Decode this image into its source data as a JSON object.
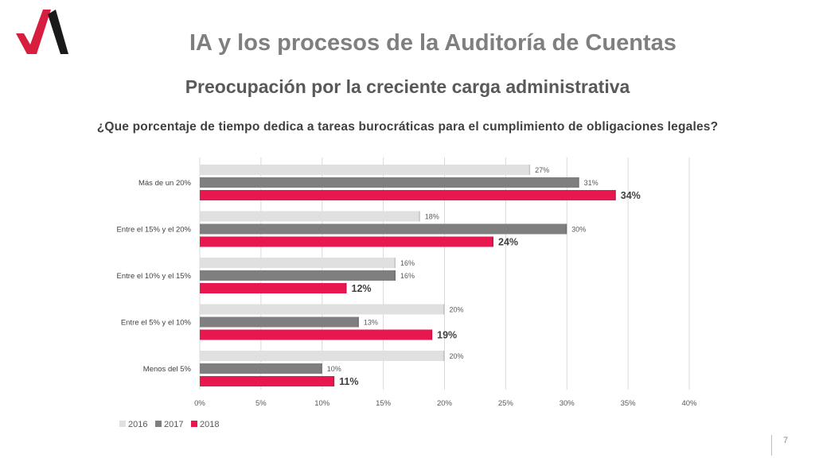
{
  "header": {
    "title": "IA y los procesos de la Auditoría de Cuentas",
    "subtitle": "Preocupación por la creciente carga administrativa",
    "question": "¿Que porcentaje de tiempo dedica a tareas burocráticas para el cumplimiento de obligaciones legales?"
  },
  "footer": {
    "page_number": "7"
  },
  "colors": {
    "s2016": "#e0e0e0",
    "s2017": "#7f7f7f",
    "s2018": "#e8174f",
    "logo_red": "#d81e3f",
    "logo_black": "#1a1a1a"
  },
  "chart_data": {
    "type": "bar",
    "orientation": "horizontal",
    "categories": [
      "Más de un  20%",
      "Entre el 15% y el 20%",
      "Entre el 10% y el 15%",
      "Entre el 5% y el 10%",
      "Menos del 5%"
    ],
    "series": [
      {
        "name": "2016",
        "values": [
          27,
          18,
          16,
          20,
          20
        ],
        "labels": [
          "27%",
          "18%",
          "16%",
          "20%",
          "20%"
        ]
      },
      {
        "name": "2017",
        "values": [
          31,
          30,
          16,
          13,
          10
        ],
        "labels": [
          "31%",
          "30%",
          "16%",
          "13%",
          "10%"
        ]
      },
      {
        "name": "2018",
        "values": [
          34,
          24,
          12,
          19,
          11
        ],
        "labels": [
          "34%",
          "24%",
          "12%",
          "19%",
          "11%"
        ]
      }
    ],
    "x_ticks": [
      "0%",
      "5%",
      "10%",
      "15%",
      "20%",
      "25%",
      "30%",
      "35%",
      "40%"
    ],
    "xlim": [
      0,
      40
    ],
    "grid": true,
    "legend_position": "bottom-left"
  }
}
